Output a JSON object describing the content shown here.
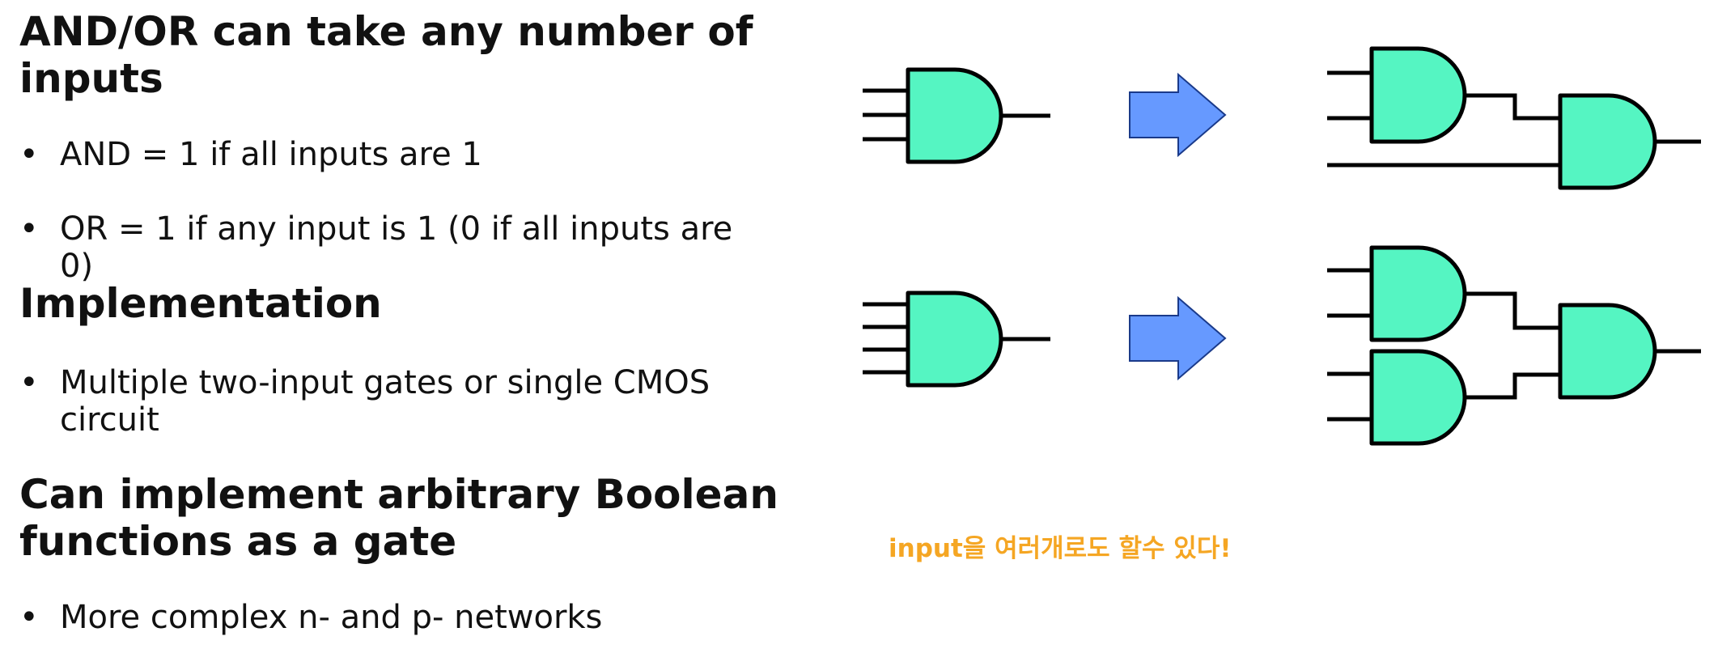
{
  "slide": {
    "heading_1": "AND/OR can take any number of inputs",
    "bullet_1": "AND = 1 if all inputs are 1",
    "bullet_2": "OR = 1 if any input is 1 (0 if all inputs are 0)",
    "heading_2": "Implementation",
    "bullet_3": "Multiple two-input gates or single CMOS circuit",
    "heading_3": "Can implement arbitrary Boolean functions as a gate",
    "bullet_4": "More complex n- and p- networks",
    "bullet_marker": "•"
  },
  "diagram": {
    "note": "input을 여러개로도 할수 있다!",
    "gate_fill": "#55f5c2",
    "arrow_fill": "#6699ff",
    "note_color": "#f5a623"
  }
}
